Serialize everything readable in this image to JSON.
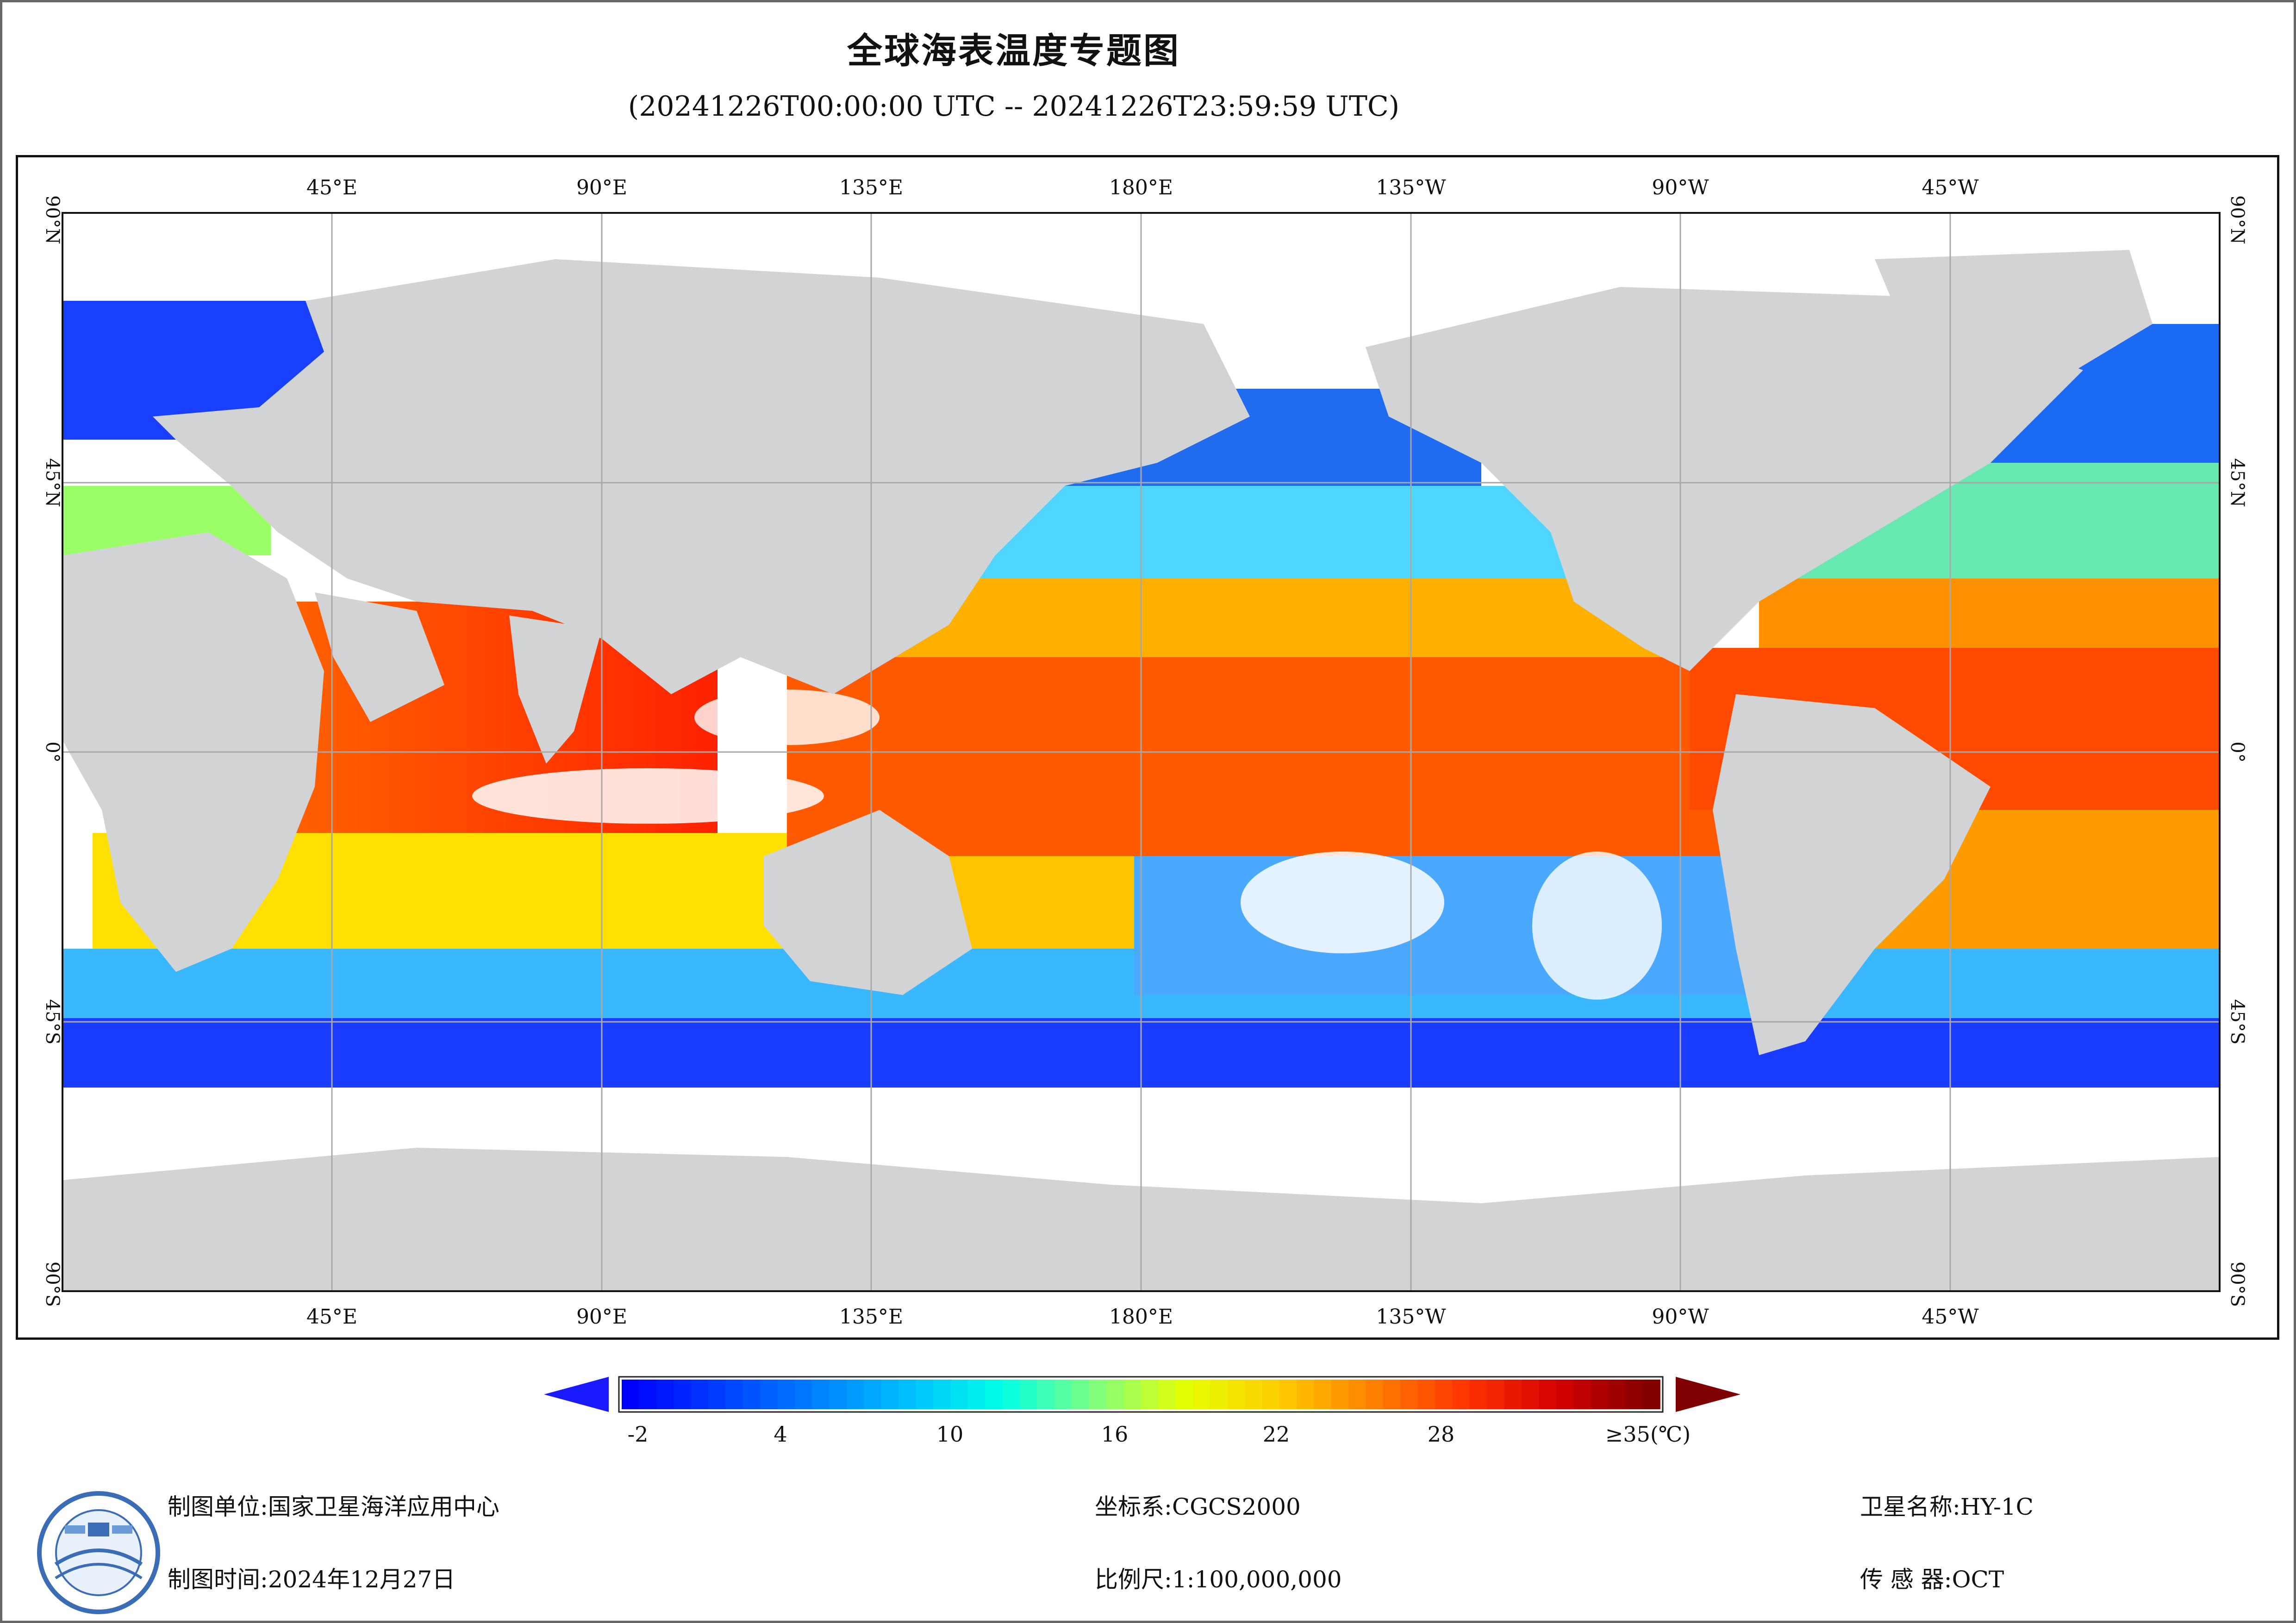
{
  "title": "全球海表温度专题图",
  "subtitle": "(20241226T00:00:00 UTC -- 20241226T23:59:59 UTC)",
  "map": {
    "top_longitude_labels": [
      "45°E",
      "90°E",
      "135°E",
      "180°E",
      "135°W",
      "90°W",
      "45°W"
    ],
    "bottom_longitude_labels": [
      "45°E",
      "90°E",
      "135°E",
      "180°E",
      "135°W",
      "90°W",
      "45°W"
    ],
    "left_latitude_labels": [
      "90°N",
      "45°N",
      "0°",
      "45°S",
      "90°S"
    ],
    "right_latitude_labels": [
      "90°N",
      "45°N",
      "0°",
      "45°S",
      "90°S"
    ],
    "colors": {
      "land": "#d2d3d5",
      "no_data": "#ffffff",
      "grid": "#a8a8a8"
    }
  },
  "colorbar": {
    "ticks": [
      "-2",
      "4",
      "10",
      "16",
      "22",
      "28"
    ],
    "max_label": "≥35(℃)",
    "min_value": -2,
    "max_value": 35,
    "low_arrow_color": "#1a1aff",
    "high_arrow_color": "#7f0000",
    "colors": [
      "#0000ff",
      "#0040ff",
      "#0080ff",
      "#00c0ff",
      "#00ffe6",
      "#80ff80",
      "#e6ff00",
      "#ffcc00",
      "#ff8000",
      "#ff3300",
      "#d40000",
      "#800000"
    ]
  },
  "footer": {
    "unit_label": "制图单位:",
    "unit_value": "国家卫星海洋应用中心",
    "time_label": "制图时间:",
    "time_value": "2024年12月27日",
    "crs_label": "坐标系:",
    "crs_value": "CGCS2000",
    "scale_label": "比例尺:",
    "scale_value": "1:100,000,000",
    "satellite_label": "卫星名称:",
    "satellite_value": "HY-1C",
    "sensor_label": "传 感 器:",
    "sensor_value": "OCT"
  }
}
